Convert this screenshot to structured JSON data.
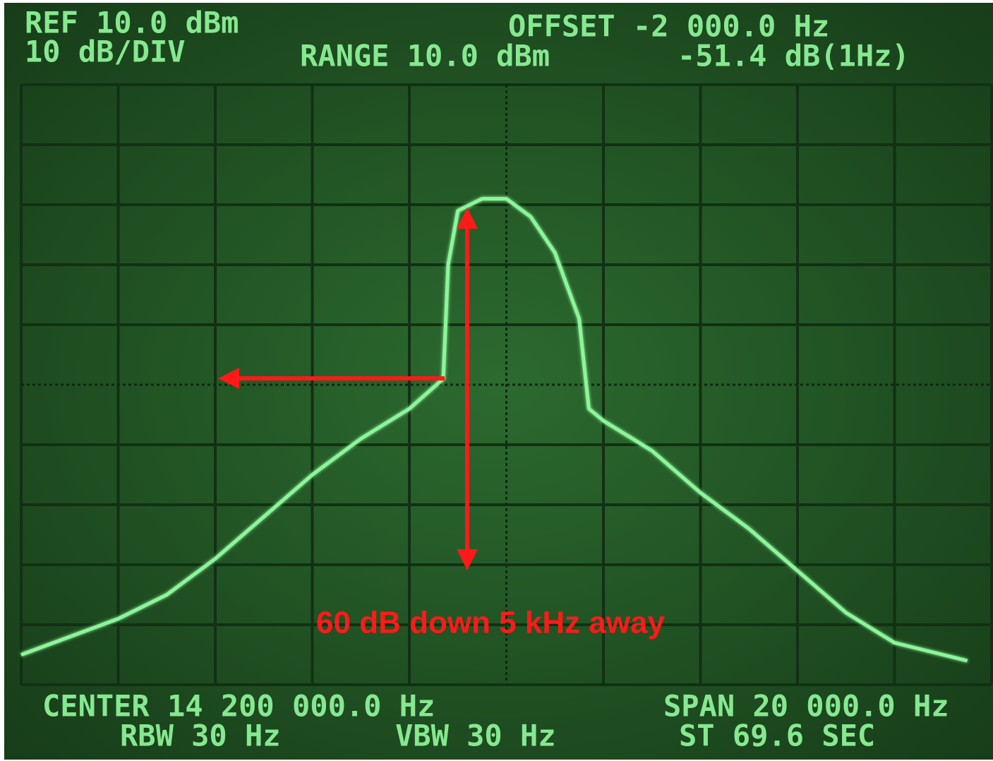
{
  "chart_data": {
    "type": "line",
    "annotations": [
      "REF 10.0 dBm",
      "10 dB/DIV",
      "OFFSET -2 000.0 Hz",
      "RANGE 10.0 dBm",
      "-51.4 dB(1Hz)",
      "CENTER 14 200 000.0 Hz",
      "RBW 30 Hz",
      "VBW 30 Hz",
      "SPAN 20 000.0 Hz",
      "ST 69.6 SEC"
    ],
    "note": "60 dB down 5 kHz away",
    "x": [
      14190000,
      14191000,
      14192000,
      14193000,
      14194000,
      14195000,
      14196000,
      14197000,
      14198000,
      14198700,
      14198800,
      14199000,
      14199500,
      14200000,
      14200500,
      14201000,
      14201500,
      14201700,
      14202000,
      14203000,
      14204000,
      14205000,
      14206000,
      14207000,
      14208000,
      14209000,
      14209500
    ],
    "values": [
      -85,
      -82,
      -79,
      -75,
      -69,
      -62,
      -55,
      -49,
      -44,
      -39,
      -20,
      -11,
      -9,
      -9,
      -12,
      -18,
      -29,
      -44,
      -46,
      -51,
      -58,
      -64,
      -71,
      -78,
      -83,
      -85,
      -86
    ],
    "color": "#8cf59a",
    "xlim": [
      14190000,
      14210000
    ],
    "ylim": [
      -90,
      10
    ]
  }
}
